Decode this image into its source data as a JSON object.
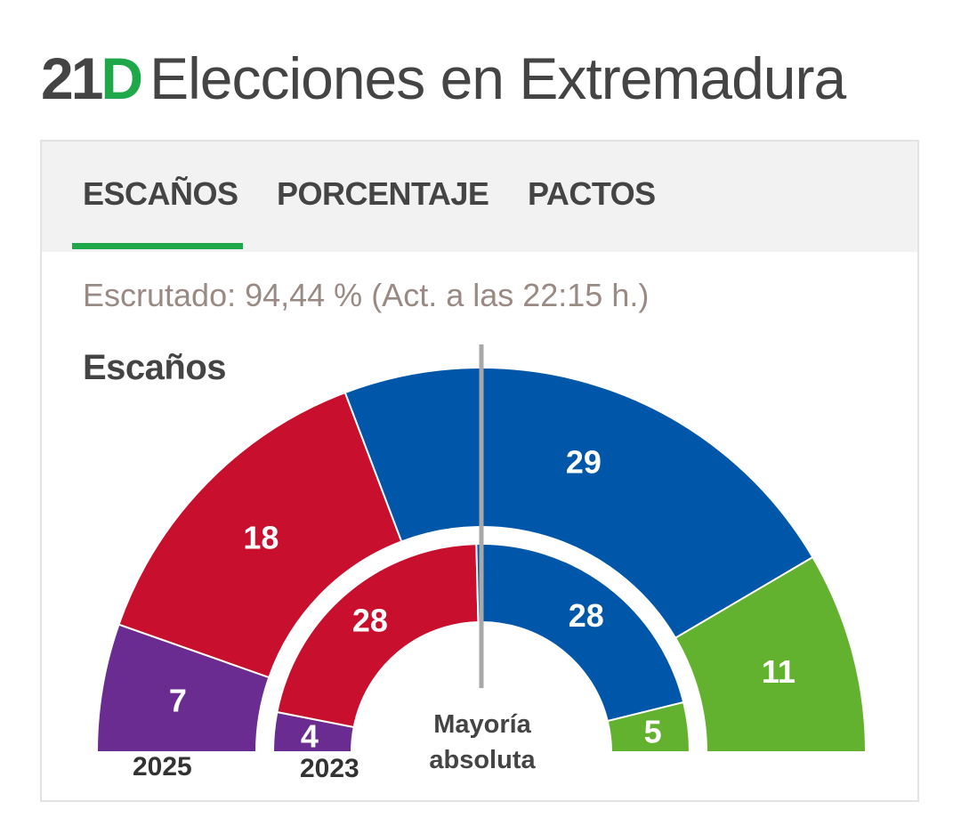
{
  "header": {
    "tag_number": "21",
    "tag_letter": "D",
    "title": "Elecciones en Extremadura"
  },
  "tabs": [
    {
      "label": "ESCAÑOS",
      "active": true
    },
    {
      "label": "PORCENTAJE",
      "active": false
    },
    {
      "label": "PACTOS",
      "active": false
    }
  ],
  "scrutiny": "Escrutado: 94,44 % (Act. a las 22:15 h.)",
  "section_title": "Escaños",
  "colors": {
    "accent": "#1ea84a",
    "purple": "#6a2c91",
    "red": "#c8102e",
    "blue": "#0056a8",
    "green": "#63b22f"
  },
  "chart_data": {
    "type": "hemicycle",
    "majority_label": [
      "Mayoría",
      "absoluta"
    ],
    "rings": [
      {
        "label": "2025",
        "ring": "outer",
        "segments": [
          {
            "value": 7,
            "color": "#6a2c91"
          },
          {
            "value": 18,
            "color": "#c8102e"
          },
          {
            "value": 29,
            "color": "#0056a8"
          },
          {
            "value": 11,
            "color": "#63b22f"
          }
        ]
      },
      {
        "label": "2023",
        "ring": "inner",
        "segments": [
          {
            "value": 4,
            "color": "#6a2c91"
          },
          {
            "value": 28,
            "color": "#c8102e"
          },
          {
            "value": 28,
            "color": "#0056a8"
          },
          {
            "value": 5,
            "color": "#63b22f"
          }
        ]
      }
    ]
  }
}
